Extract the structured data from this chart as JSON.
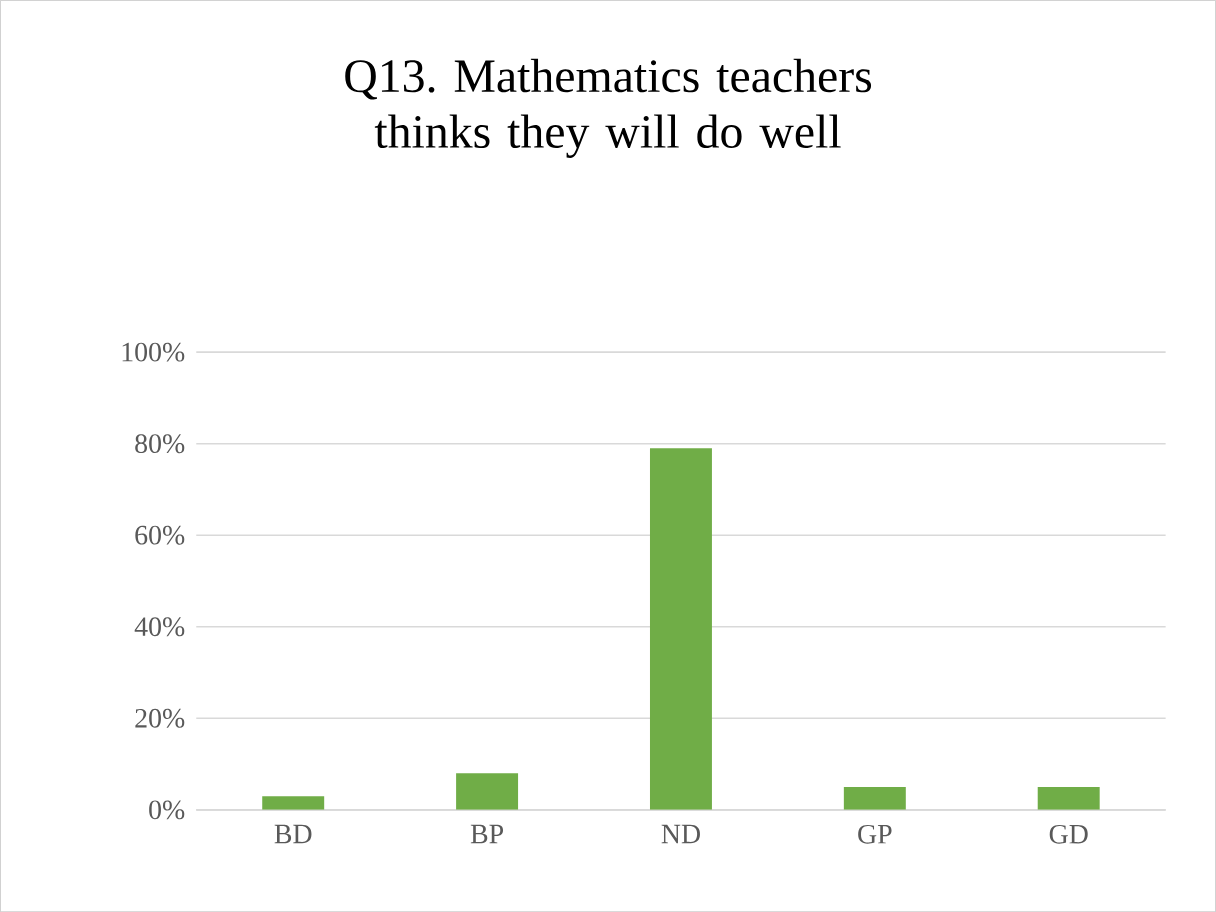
{
  "chart_data": {
    "type": "bar",
    "title": "Q13. Mathematics teachers thinks they will do well",
    "categories": [
      "BD",
      "BP",
      "ND",
      "GP",
      "GD"
    ],
    "values": [
      3,
      8,
      79,
      5,
      5
    ],
    "color": "#70ad47",
    "ylim": [
      0,
      100
    ],
    "yticks": [
      {
        "value": 0,
        "label": "0%"
      },
      {
        "value": 20,
        "label": "20%"
      },
      {
        "value": 40,
        "label": "40%"
      },
      {
        "value": 60,
        "label": "60%"
      },
      {
        "value": 80,
        "label": "80%"
      },
      {
        "value": 100,
        "label": "100%"
      }
    ],
    "grid": "y"
  }
}
